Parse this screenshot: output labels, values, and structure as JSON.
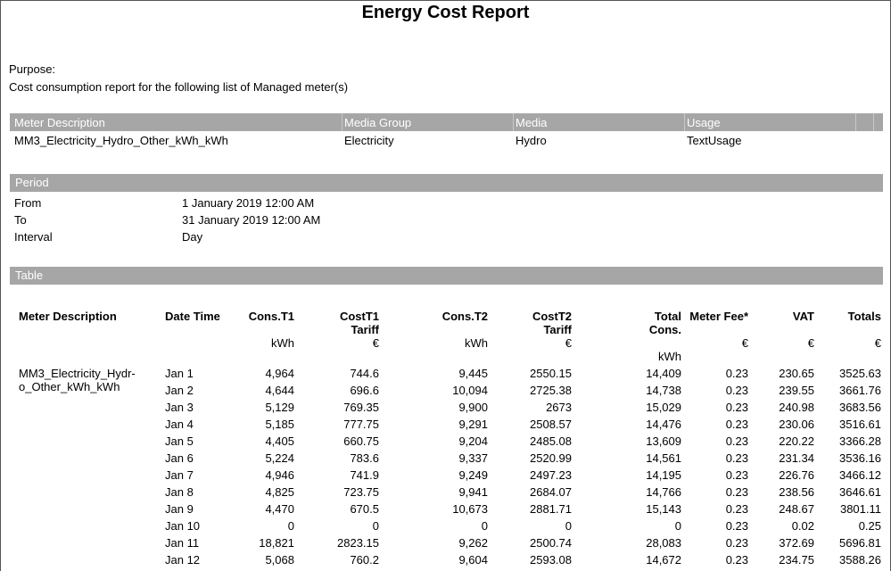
{
  "title": "Energy Cost Report",
  "purpose": {
    "label": "Purpose:",
    "text": "Cost consumption report for the following list of Managed meter(s)"
  },
  "meters": {
    "headers": [
      "Meter Description",
      "Media Group",
      "Media",
      "Usage"
    ],
    "rows": [
      [
        "MM3_Electricity_Hydro_Other_kWh_kWh",
        "Electricity",
        "Hydro",
        "TextUsage"
      ]
    ]
  },
  "period": {
    "header": "Period",
    "rows": [
      [
        "From",
        "1 January 2019 12:00 AM"
      ],
      [
        "To",
        "31 January 2019 12:00 AM"
      ],
      [
        "Interval",
        "Day"
      ]
    ]
  },
  "table": {
    "header": "Table",
    "columns": [
      {
        "lines": [
          "Meter Description"
        ]
      },
      {
        "lines": [
          "Date Time"
        ]
      },
      {
        "lines": [
          "Cons.T1"
        ],
        "unit": "kWh"
      },
      {
        "lines": [
          "CostT1",
          "Tariff"
        ],
        "unit": "€"
      },
      {
        "lines": [
          "Cons.T2"
        ],
        "unit": "kWh"
      },
      {
        "lines": [
          "CostT2",
          "Tariff"
        ],
        "unit": "€"
      },
      {
        "lines": [
          "Total",
          "Cons."
        ],
        "unit": "kWh"
      },
      {
        "lines": [
          "Meter Fee*"
        ],
        "unit": "€"
      },
      {
        "lines": [
          "VAT"
        ],
        "unit": "€"
      },
      {
        "lines": [
          "Totals"
        ],
        "unit": "€"
      }
    ],
    "meter_lines": [
      "MM3_Electricity_Hydr-",
      "o_Other_kWh_kWh"
    ],
    "rows": [
      [
        "Jan 1",
        "4,964",
        "744.6",
        "9,445",
        "2550.15",
        "14,409",
        "0.23",
        "230.65",
        "3525.63"
      ],
      [
        "Jan 2",
        "4,644",
        "696.6",
        "10,094",
        "2725.38",
        "14,738",
        "0.23",
        "239.55",
        "3661.76"
      ],
      [
        "Jan 3",
        "5,129",
        "769.35",
        "9,900",
        "2673",
        "15,029",
        "0.23",
        "240.98",
        "3683.56"
      ],
      [
        "Jan 4",
        "5,185",
        "777.75",
        "9,291",
        "2508.57",
        "14,476",
        "0.23",
        "230.06",
        "3516.61"
      ],
      [
        "Jan 5",
        "4,405",
        "660.75",
        "9,204",
        "2485.08",
        "13,609",
        "0.23",
        "220.22",
        "3366.28"
      ],
      [
        "Jan 6",
        "5,224",
        "783.6",
        "9,337",
        "2520.99",
        "14,561",
        "0.23",
        "231.34",
        "3536.16"
      ],
      [
        "Jan 7",
        "4,946",
        "741.9",
        "9,249",
        "2497.23",
        "14,195",
        "0.23",
        "226.76",
        "3466.12"
      ],
      [
        "Jan 8",
        "4,825",
        "723.75",
        "9,941",
        "2684.07",
        "14,766",
        "0.23",
        "238.56",
        "3646.61"
      ],
      [
        "Jan 9",
        "4,470",
        "670.5",
        "10,673",
        "2881.71",
        "15,143",
        "0.23",
        "248.67",
        "3801.11"
      ],
      [
        "Jan 10",
        "0",
        "0",
        "0",
        "0",
        "0",
        "0.23",
        "0.02",
        "0.25"
      ],
      [
        "Jan 11",
        "18,821",
        "2823.15",
        "9,262",
        "2500.74",
        "28,083",
        "0.23",
        "372.69",
        "5696.81"
      ],
      [
        "Jan 12",
        "5,068",
        "760.2",
        "9,604",
        "2593.08",
        "14,672",
        "0.23",
        "234.75",
        "3588.26"
      ]
    ]
  }
}
